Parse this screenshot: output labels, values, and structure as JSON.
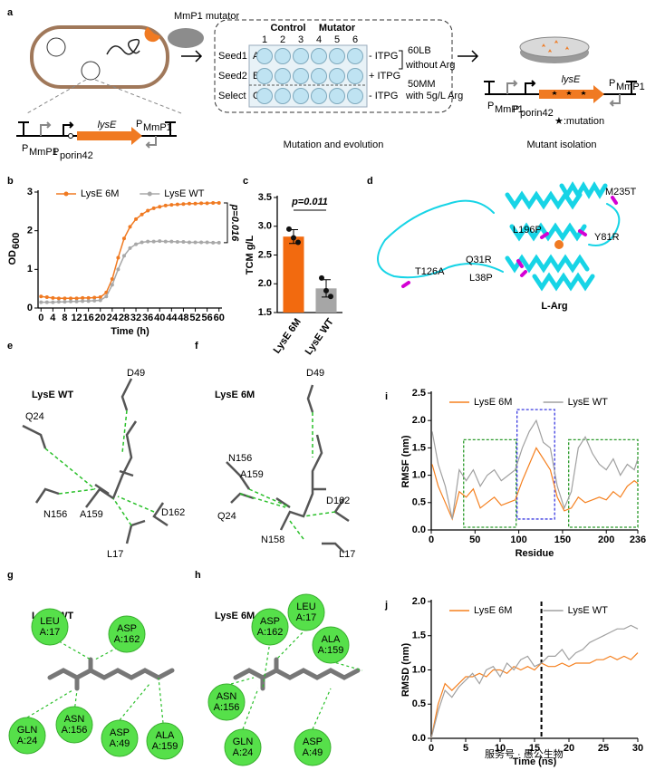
{
  "panel_labels": [
    "a",
    "b",
    "c",
    "d",
    "e",
    "f",
    "g",
    "h",
    "i",
    "j"
  ],
  "panel_a": {
    "mutator": "MmP1 mutator",
    "construct1": {
      "gene": "lysE",
      "p1": "P",
      "p1_sub": "MmP1",
      "p2": "P",
      "p2_sub": "porin42",
      "term": "P",
      "term_sub": "MmP1"
    },
    "plate": {
      "control": "Control",
      "mutator": "Mutator",
      "columns": [
        "1",
        "2",
        "3",
        "4",
        "5",
        "6"
      ],
      "rows": [
        "A",
        "B",
        "C"
      ],
      "row_labels": [
        "Seed1",
        "Seed2",
        "Select"
      ],
      "conditions": [
        "- ITPG",
        "+ ITPG",
        "- ITPG"
      ],
      "media": [
        "60LB",
        "without Arg",
        "50MM",
        "with 5g/L Arg"
      ]
    },
    "caption1": "Mutation and evolution",
    "construct2": {
      "gene": "lysE",
      "p1": "P",
      "p1_sub": "MmP1",
      "p2": "P",
      "p2_sub": "porin42",
      "term": "P",
      "term_sub": "MmP1"
    },
    "legend": "★:mutation",
    "caption2": "Mutant isolation"
  },
  "chart_data": [
    {
      "type": "line",
      "x": [
        0,
        2,
        4,
        6,
        8,
        10,
        12,
        14,
        16,
        18,
        20,
        22,
        24,
        26,
        28,
        30,
        32,
        34,
        36,
        38,
        40,
        42,
        44,
        46,
        48,
        50,
        52,
        54,
        56,
        58,
        60
      ],
      "xlim": [
        -1,
        61
      ],
      "ylim": [
        0,
        3
      ],
      "xticks": [
        0,
        4,
        8,
        12,
        16,
        20,
        24,
        28,
        32,
        36,
        40,
        44,
        48,
        52,
        56,
        60
      ],
      "yticks": [
        0,
        1,
        2,
        3
      ],
      "xlabel": "Time (h)",
      "ylabel": "OD",
      "ylabel_sub": "600",
      "legend": "top",
      "markers": true,
      "annotation": "p=0.016",
      "series": [
        {
          "name": "LysE 6M",
          "color": "#f07a22",
          "values": [
            0.3,
            0.28,
            0.26,
            0.25,
            0.25,
            0.25,
            0.25,
            0.26,
            0.26,
            0.27,
            0.28,
            0.4,
            0.75,
            1.3,
            1.8,
            2.1,
            2.3,
            2.42,
            2.52,
            2.58,
            2.62,
            2.65,
            2.67,
            2.68,
            2.69,
            2.7,
            2.7,
            2.71,
            2.71,
            2.72,
            2.72
          ]
        },
        {
          "name": "LysE WT",
          "color": "#a8a8a8",
          "values": [
            0.15,
            0.15,
            0.15,
            0.16,
            0.16,
            0.17,
            0.17,
            0.18,
            0.18,
            0.19,
            0.2,
            0.3,
            0.6,
            1.0,
            1.35,
            1.55,
            1.65,
            1.7,
            1.72,
            1.72,
            1.73,
            1.72,
            1.72,
            1.71,
            1.71,
            1.7,
            1.7,
            1.7,
            1.7,
            1.69,
            1.69
          ]
        }
      ]
    },
    {
      "type": "bar",
      "categories": [
        "LysE 6M",
        "LysE WT"
      ],
      "values": [
        2.82,
        1.92
      ],
      "errors": [
        0.12,
        0.15
      ],
      "points": [
        [
          2.95,
          2.8,
          2.72
        ],
        [
          2.1,
          1.88,
          1.78
        ]
      ],
      "colors": [
        "#f26a0f",
        "#a6a6a6"
      ],
      "ylim": [
        1.5,
        3.5
      ],
      "yticks": [
        1.5,
        {
          "value": 2,
          "label": "2.0"
        },
        2.5,
        {
          "value": 3,
          "label": "3.0"
        },
        3.5
      ],
      "ylabel": "TCM g/L",
      "annotation": "p=0.011"
    },
    {
      "type": "line",
      "x": [
        1,
        8,
        16,
        24,
        32,
        40,
        48,
        56,
        64,
        72,
        80,
        88,
        96,
        104,
        112,
        120,
        128,
        136,
        144,
        152,
        160,
        168,
        176,
        184,
        192,
        200,
        208,
        216,
        224,
        232,
        236
      ],
      "xlim": [
        0,
        236
      ],
      "ylim": [
        0,
        2.5
      ],
      "xticks": [
        0,
        50,
        100,
        150,
        200,
        236
      ],
      "yticks": [
        {
          "value": 0,
          "label": "0.0"
        },
        0.5,
        {
          "value": 1,
          "label": "1.0"
        },
        1.5,
        {
          "value": 2,
          "label": "2.0"
        },
        2.5
      ],
      "xlabel": "Residue",
      "ylabel": "RMSF (nm)",
      "legend": "top",
      "regions": [
        {
          "x": [
            37,
            97
          ],
          "y": [
            0.05,
            1.65
          ],
          "color": "#2a9a2a"
        },
        {
          "x": [
            98,
            141
          ],
          "y": [
            0.2,
            2.2
          ],
          "color": "#3a3ae0"
        },
        {
          "x": [
            157,
            236
          ],
          "y": [
            0.05,
            1.65
          ],
          "color": "#2a9a2a"
        }
      ],
      "series": [
        {
          "name": "LysE 6M",
          "color": "#f5801f",
          "values": [
            1.2,
            0.8,
            0.5,
            0.2,
            0.7,
            0.6,
            0.75,
            0.4,
            0.5,
            0.6,
            0.45,
            0.5,
            0.55,
            0.9,
            1.2,
            1.5,
            1.3,
            1.1,
            0.6,
            0.35,
            0.4,
            0.6,
            0.5,
            0.55,
            0.6,
            0.55,
            0.7,
            0.6,
            0.8,
            0.9,
            0.85
          ]
        },
        {
          "name": "LysE WT",
          "color": "#a0a0a0",
          "values": [
            1.8,
            1.2,
            0.8,
            0.2,
            1.1,
            0.9,
            1.1,
            0.8,
            1.0,
            1.1,
            0.9,
            1.0,
            1.1,
            1.5,
            1.8,
            2.0,
            1.6,
            1.5,
            0.8,
            0.4,
            0.7,
            1.5,
            1.7,
            1.4,
            1.2,
            1.1,
            1.3,
            1.0,
            1.2,
            1.1,
            1.3
          ]
        }
      ]
    },
    {
      "type": "line",
      "x": [
        0,
        1,
        2,
        3,
        4,
        5,
        6,
        7,
        8,
        9,
        10,
        11,
        12,
        13,
        14,
        15,
        16,
        17,
        18,
        19,
        20,
        21,
        22,
        23,
        24,
        25,
        26,
        27,
        28,
        29,
        30
      ],
      "xlim": [
        0,
        30
      ],
      "ylim": [
        0,
        2
      ],
      "xticks": [
        0,
        5,
        10,
        15,
        20,
        25,
        30
      ],
      "yticks": [
        {
          "value": 0,
          "label": "0.0"
        },
        0.5,
        {
          "value": 1,
          "label": "1.0"
        },
        1.5,
        {
          "value": 2,
          "label": "2.0"
        }
      ],
      "xlabel": "Time (ns)",
      "ylabel": "RMSD (nm)",
      "legend": "top",
      "vline": 16,
      "series": [
        {
          "name": "LysE 6M",
          "color": "#f5801f",
          "values": [
            0,
            0.5,
            0.8,
            0.7,
            0.8,
            0.9,
            0.9,
            0.95,
            0.9,
            1.0,
            1.0,
            0.95,
            1.05,
            1.0,
            1.05,
            1.0,
            1.1,
            1.05,
            1.05,
            1.1,
            1.05,
            1.1,
            1.1,
            1.1,
            1.15,
            1.15,
            1.2,
            1.15,
            1.2,
            1.15,
            1.25
          ]
        },
        {
          "name": "LysE WT",
          "color": "#a0a0a0",
          "values": [
            0,
            0.4,
            0.7,
            0.6,
            0.75,
            0.85,
            0.95,
            0.8,
            1.0,
            1.05,
            0.9,
            1.1,
            1.0,
            1.15,
            1.2,
            1.05,
            1.1,
            1.2,
            1.2,
            1.3,
            1.15,
            1.25,
            1.3,
            1.4,
            1.45,
            1.5,
            1.55,
            1.6,
            1.6,
            1.65,
            1.6
          ]
        }
      ]
    }
  ],
  "panel_d": {
    "labels": [
      "M235T",
      "L196P",
      "Y81R",
      "Q31R",
      "L38P",
      "T126A"
    ],
    "ligand": "L-Arg"
  },
  "panel_e": {
    "title": "LysE WT",
    "labels": [
      "D49",
      "Q24",
      "N156",
      "A159",
      "D162",
      "L17"
    ]
  },
  "panel_f": {
    "title": "LysE 6M",
    "labels": [
      "D49",
      "N156",
      "A159",
      "Q24",
      "D162",
      "N158",
      "L17"
    ]
  },
  "panel_g": {
    "title": "LysE WT",
    "nodes": [
      {
        "res": "LEU",
        "id": "A:17"
      },
      {
        "res": "ASP",
        "id": "A:162"
      },
      {
        "res": "GLN",
        "id": "A:24"
      },
      {
        "res": "ASN",
        "id": "A:156"
      },
      {
        "res": "ASP",
        "id": "A:49"
      },
      {
        "res": "ALA",
        "id": "A:159"
      }
    ]
  },
  "panel_h": {
    "title": "LysE 6M",
    "nodes": [
      {
        "res": "ASP",
        "id": "A:162"
      },
      {
        "res": "LEU",
        "id": "A:17"
      },
      {
        "res": "ALA",
        "id": "A:159"
      },
      {
        "res": "ASN",
        "id": "A:156"
      },
      {
        "res": "GLN",
        "id": "A:24"
      },
      {
        "res": "ASP",
        "id": "A:49"
      }
    ]
  },
  "watermark": "服务号 · 愚公生物"
}
